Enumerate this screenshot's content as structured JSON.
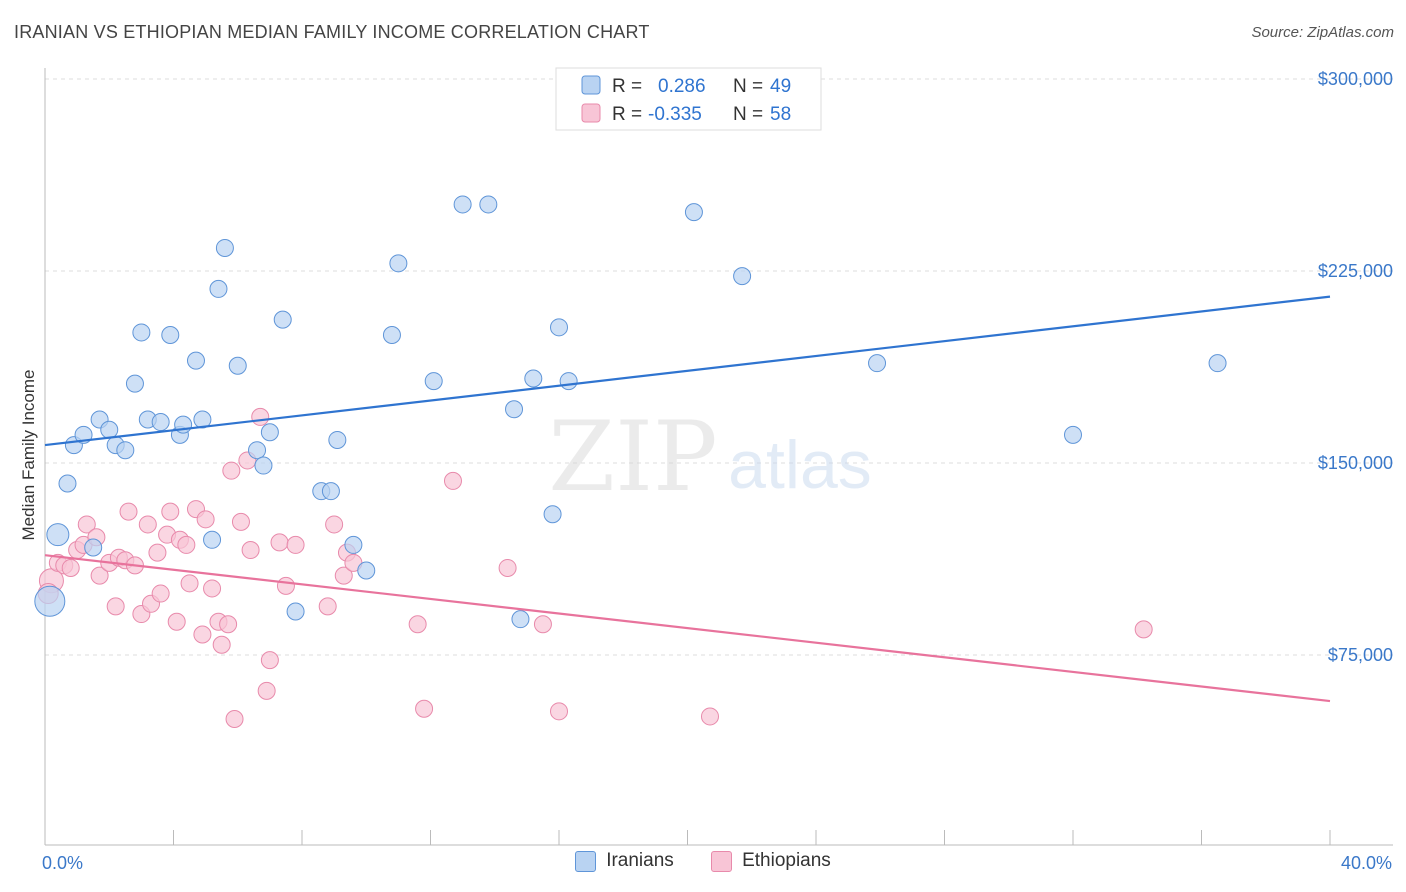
{
  "header": {
    "title": "IRANIAN VS ETHIOPIAN MEDIAN FAMILY INCOME CORRELATION CHART",
    "source": "Source: ZipAtlas.com"
  },
  "watermark": {
    "zip": "ZIP",
    "atlas": "atlas"
  },
  "legend_top": [
    {
      "r_label": "R =",
      "r_value": "0.286",
      "n_label": "N =",
      "n_value": "49"
    },
    {
      "r_label": "R =",
      "r_value": "-0.335",
      "n_label": "N =",
      "n_value": "58"
    }
  ],
  "colors": {
    "blue_fill": "#b9d3f2",
    "blue_stroke": "#5f95d8",
    "blue_line": "#2f74d0",
    "pink_fill": "#f8c5d6",
    "pink_stroke": "#e88aab",
    "pink_line": "#e8739c",
    "tick_text": "#3a78c9",
    "grid": "#dddddd"
  },
  "chart_data": {
    "type": "scatter",
    "title": "IRANIAN VS ETHIOPIAN MEDIAN FAMILY INCOME CORRELATION CHART",
    "ylabel": "Median Family Income",
    "xlim": [
      0,
      40
    ],
    "ylim": [
      0,
      312000
    ],
    "x_tick_labels": [
      {
        "value": 0,
        "label": "0.0%"
      },
      {
        "value": 40,
        "label": "40.0%"
      }
    ],
    "y_ticks": [
      {
        "value": 75000,
        "label": "$75,000"
      },
      {
        "value": 150000,
        "label": "$150,000"
      },
      {
        "value": 225000,
        "label": "$225,000"
      },
      {
        "value": 300000,
        "label": "$300,000"
      }
    ],
    "grid": true,
    "legend_position": "bottom-center",
    "series": [
      {
        "name": "Iranians",
        "color": "#5f95d8",
        "regression": {
          "x": [
            0,
            40
          ],
          "y": [
            157000,
            215000
          ]
        },
        "points": [
          {
            "x": 0.4,
            "y": 122000,
            "s": 11
          },
          {
            "x": 0.7,
            "y": 142000
          },
          {
            "x": 0.9,
            "y": 157000
          },
          {
            "x": 1.2,
            "y": 161000
          },
          {
            "x": 1.5,
            "y": 117000
          },
          {
            "x": 1.7,
            "y": 167000
          },
          {
            "x": 2.0,
            "y": 163000
          },
          {
            "x": 2.2,
            "y": 157000
          },
          {
            "x": 2.5,
            "y": 155000
          },
          {
            "x": 2.8,
            "y": 181000
          },
          {
            "x": 3.0,
            "y": 201000
          },
          {
            "x": 3.2,
            "y": 167000
          },
          {
            "x": 3.6,
            "y": 166000
          },
          {
            "x": 3.9,
            "y": 200000
          },
          {
            "x": 4.2,
            "y": 161000
          },
          {
            "x": 4.3,
            "y": 165000
          },
          {
            "x": 4.7,
            "y": 190000
          },
          {
            "x": 4.9,
            "y": 167000
          },
          {
            "x": 5.2,
            "y": 120000
          },
          {
            "x": 5.4,
            "y": 218000
          },
          {
            "x": 5.6,
            "y": 234000
          },
          {
            "x": 6.0,
            "y": 188000
          },
          {
            "x": 6.6,
            "y": 155000
          },
          {
            "x": 6.8,
            "y": 149000
          },
          {
            "x": 7.0,
            "y": 162000
          },
          {
            "x": 7.4,
            "y": 206000
          },
          {
            "x": 7.8,
            "y": 92000
          },
          {
            "x": 8.6,
            "y": 139000
          },
          {
            "x": 8.9,
            "y": 139000
          },
          {
            "x": 9.1,
            "y": 159000
          },
          {
            "x": 9.6,
            "y": 118000
          },
          {
            "x": 10.0,
            "y": 108000
          },
          {
            "x": 10.8,
            "y": 200000
          },
          {
            "x": 11.0,
            "y": 228000
          },
          {
            "x": 12.1,
            "y": 182000
          },
          {
            "x": 13.0,
            "y": 251000
          },
          {
            "x": 13.8,
            "y": 251000
          },
          {
            "x": 14.6,
            "y": 171000
          },
          {
            "x": 14.8,
            "y": 89000
          },
          {
            "x": 15.2,
            "y": 183000
          },
          {
            "x": 15.8,
            "y": 130000
          },
          {
            "x": 16.0,
            "y": 203000
          },
          {
            "x": 16.3,
            "y": 182000
          },
          {
            "x": 20.2,
            "y": 248000
          },
          {
            "x": 21.7,
            "y": 223000
          },
          {
            "x": 25.9,
            "y": 189000
          },
          {
            "x": 32.0,
            "y": 161000
          },
          {
            "x": 36.5,
            "y": 189000
          },
          {
            "x": 0.15,
            "y": 96000,
            "s": 15
          }
        ]
      },
      {
        "name": "Ethiopians",
        "color": "#e88aab",
        "regression": {
          "x": [
            0,
            40
          ],
          "y": [
            114000,
            57000
          ]
        },
        "points": [
          {
            "x": 0.2,
            "y": 104000,
            "s": 12
          },
          {
            "x": 0.4,
            "y": 111000
          },
          {
            "x": 0.6,
            "y": 110000
          },
          {
            "x": 0.8,
            "y": 109000
          },
          {
            "x": 1.0,
            "y": 116000
          },
          {
            "x": 1.2,
            "y": 118000
          },
          {
            "x": 1.3,
            "y": 126000
          },
          {
            "x": 1.6,
            "y": 121000
          },
          {
            "x": 1.7,
            "y": 106000
          },
          {
            "x": 2.0,
            "y": 111000
          },
          {
            "x": 2.2,
            "y": 94000
          },
          {
            "x": 2.3,
            "y": 113000
          },
          {
            "x": 2.5,
            "y": 112000
          },
          {
            "x": 2.6,
            "y": 131000
          },
          {
            "x": 2.8,
            "y": 110000
          },
          {
            "x": 3.0,
            "y": 91000
          },
          {
            "x": 3.2,
            "y": 126000
          },
          {
            "x": 3.3,
            "y": 95000
          },
          {
            "x": 3.5,
            "y": 115000
          },
          {
            "x": 3.6,
            "y": 99000
          },
          {
            "x": 3.8,
            "y": 122000
          },
          {
            "x": 3.9,
            "y": 131000
          },
          {
            "x": 4.1,
            "y": 88000
          },
          {
            "x": 4.2,
            "y": 120000
          },
          {
            "x": 4.4,
            "y": 118000
          },
          {
            "x": 4.5,
            "y": 103000
          },
          {
            "x": 4.7,
            "y": 132000
          },
          {
            "x": 4.9,
            "y": 83000
          },
          {
            "x": 5.0,
            "y": 128000
          },
          {
            "x": 5.2,
            "y": 101000
          },
          {
            "x": 5.4,
            "y": 88000
          },
          {
            "x": 5.5,
            "y": 79000
          },
          {
            "x": 5.7,
            "y": 87000
          },
          {
            "x": 5.8,
            "y": 147000
          },
          {
            "x": 5.9,
            "y": 50000
          },
          {
            "x": 6.1,
            "y": 127000
          },
          {
            "x": 6.3,
            "y": 151000
          },
          {
            "x": 6.4,
            "y": 116000
          },
          {
            "x": 6.7,
            "y": 168000
          },
          {
            "x": 6.9,
            "y": 61000
          },
          {
            "x": 7.0,
            "y": 73000
          },
          {
            "x": 7.3,
            "y": 119000
          },
          {
            "x": 7.5,
            "y": 102000
          },
          {
            "x": 7.8,
            "y": 118000
          },
          {
            "x": 8.8,
            "y": 94000
          },
          {
            "x": 9.0,
            "y": 126000
          },
          {
            "x": 9.3,
            "y": 106000
          },
          {
            "x": 9.4,
            "y": 115000
          },
          {
            "x": 9.6,
            "y": 111000
          },
          {
            "x": 11.6,
            "y": 87000
          },
          {
            "x": 11.8,
            "y": 54000
          },
          {
            "x": 12.7,
            "y": 143000
          },
          {
            "x": 14.4,
            "y": 109000
          },
          {
            "x": 15.5,
            "y": 87000
          },
          {
            "x": 16.0,
            "y": 53000
          },
          {
            "x": 20.7,
            "y": 51000
          },
          {
            "x": 34.2,
            "y": 85000
          },
          {
            "x": 0.1,
            "y": 99000,
            "s": 10
          }
        ]
      }
    ]
  }
}
